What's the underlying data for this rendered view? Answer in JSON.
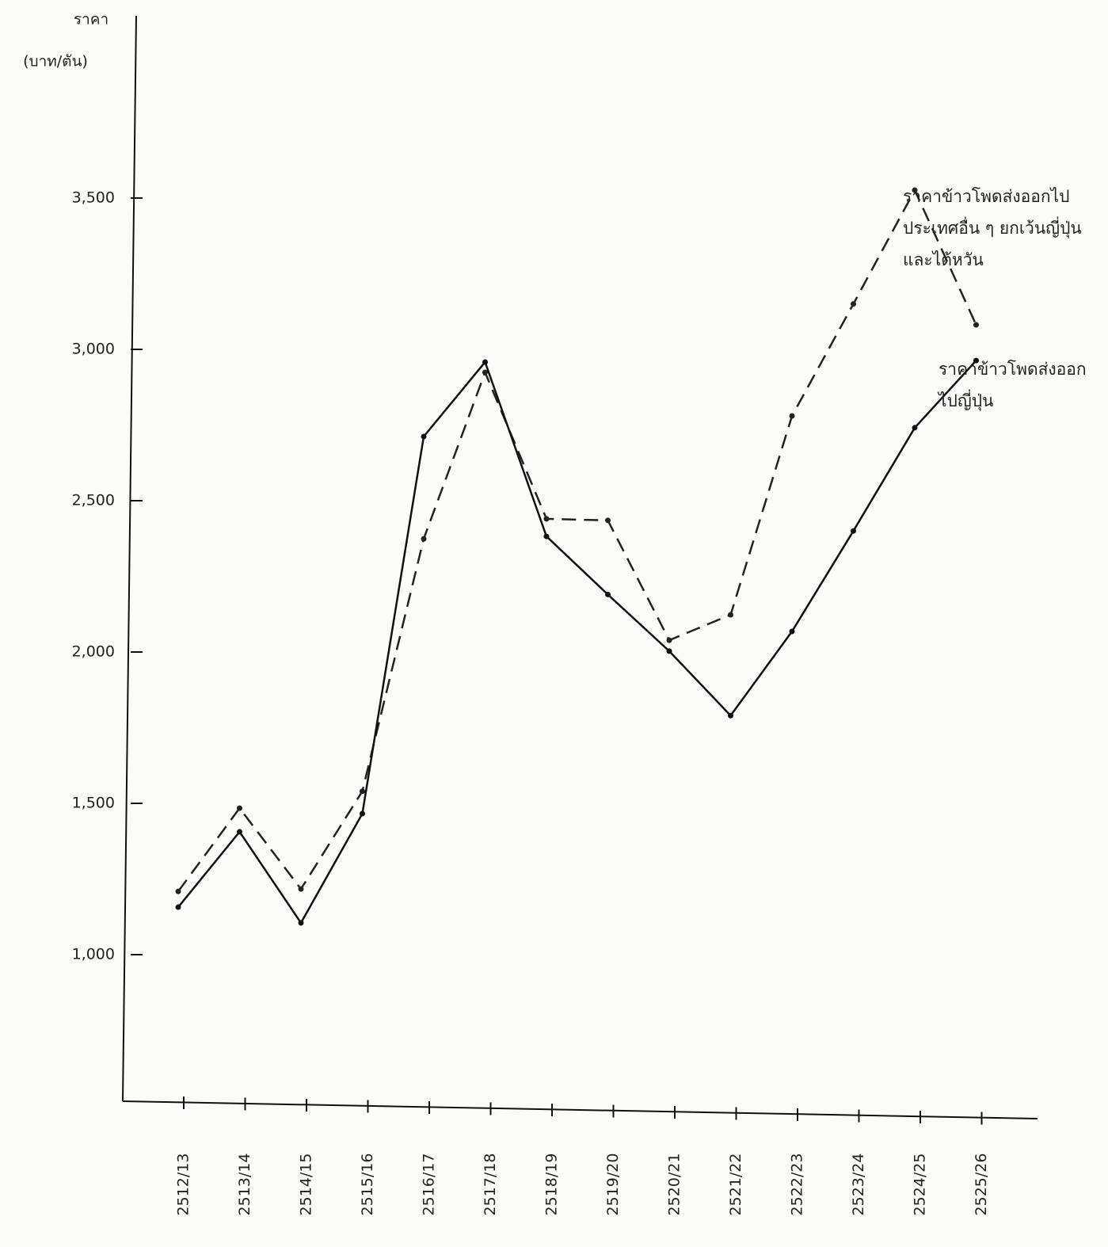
{
  "chart_data": {
    "type": "line",
    "ylabel": "ราคา",
    "yunit": "(บาท/ตัน)",
    "categories": [
      "2512/13",
      "2513/14",
      "2514/15",
      "2515/16",
      "2516/17",
      "2517/18",
      "2518/19",
      "2519/20",
      "2520/21",
      "2521/22",
      "2522/23",
      "2523/24",
      "2524/25",
      "2525/26"
    ],
    "series": [
      {
        "name": "ราคาข้าวโพดส่งออกไปประเทศอื่น ๆ ยกเว้นญี่ปุ่นและไต้หวัน",
        "color": "#222222",
        "dashed": true,
        "values": [
          1209,
          1484,
          1217,
          1540,
          2374,
          2924,
          2440,
          2435,
          2039,
          2123,
          2780,
          3150,
          3526,
          3081
        ]
      },
      {
        "name": "ราคาข้าวโพดส่งออกไปญี่ปุ่น",
        "color": "#111111",
        "dashed": false,
        "values": [
          1157,
          1406,
          1105,
          1466,
          2712,
          2958,
          2382,
          2190,
          2003,
          1790,
          2068,
          2400,
          2741,
          2963
        ]
      }
    ],
    "ylim": [
      521,
      4102
    ],
    "yticks": [
      {
        "value": 1000,
        "label": "1,000"
      },
      {
        "value": 1500,
        "label": "1,500"
      },
      {
        "value": 2000,
        "label": "2,000"
      },
      {
        "value": 2500,
        "label": "2,500"
      },
      {
        "value": 3000,
        "label": "3,000"
      },
      {
        "value": 3500,
        "label": "3,500"
      }
    ]
  }
}
